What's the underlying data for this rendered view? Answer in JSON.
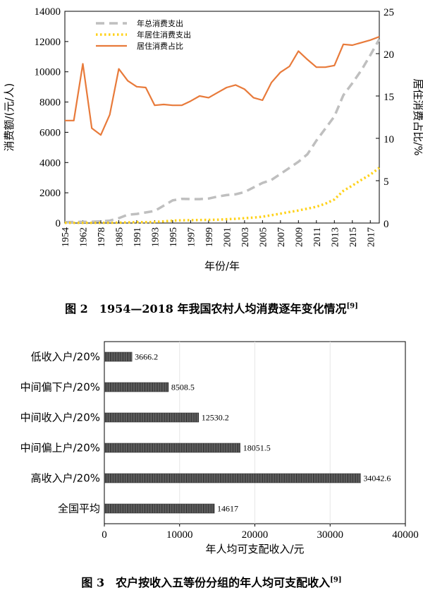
{
  "chart_data": [
    {
      "type": "line",
      "x": [
        "1954",
        "1957",
        "1962",
        "1965",
        "1978",
        "1980",
        "1985",
        "1990",
        "1991",
        "1992",
        "1993",
        "1994",
        "1995",
        "1996",
        "1997",
        "1998",
        "1999",
        "2000",
        "2001",
        "2002",
        "2003",
        "2004",
        "2005",
        "2006",
        "2007",
        "2008",
        "2009",
        "2010",
        "2011",
        "2012",
        "2013",
        "2014",
        "2015",
        "2016",
        "2017",
        "2018"
      ],
      "xticks": [
        "1954",
        "1962",
        "1978",
        "1985",
        "1991",
        "1993",
        "1995",
        "1997",
        "1999",
        "2001",
        "2003",
        "2005",
        "2007",
        "2009",
        "2011",
        "2013",
        "2015",
        "2017"
      ],
      "xlabel": "年份/年",
      "ylabel": "消费额/(元/人)",
      "ylabel_right": "居住消费占比/%",
      "ylim": [
        0,
        14000
      ],
      "yticks": [
        0,
        2000,
        4000,
        6000,
        8000,
        10000,
        12000,
        14000
      ],
      "ylim_right": [
        0,
        25
      ],
      "yticks_right": [
        0,
        5,
        10,
        15,
        20,
        25
      ],
      "legend_position": "top-left",
      "series": [
        {
          "name": "年总消费支出",
          "axis": "left",
          "color": "#bfbfbf",
          "style": "dashed",
          "values": [
            60,
            70,
            80,
            90,
            110,
            160,
            320,
            550,
            600,
            700,
            800,
            1150,
            1500,
            1600,
            1580,
            1580,
            1620,
            1750,
            1850,
            1900,
            2050,
            2350,
            2650,
            2850,
            3250,
            3650,
            4050,
            4550,
            5450,
            6250,
            7050,
            8450,
            9250,
            10100,
            11100,
            12150
          ]
        },
        {
          "name": "年居住消费支出",
          "axis": "left",
          "color": "#ffd21a",
          "style": "dotted",
          "values": [
            10,
            10,
            12,
            12,
            15,
            18,
            25,
            45,
            55,
            60,
            70,
            110,
            160,
            180,
            190,
            200,
            210,
            220,
            250,
            280,
            320,
            360,
            420,
            520,
            620,
            730,
            830,
            950,
            1080,
            1280,
            1560,
            2130,
            2480,
            2850,
            3200,
            3650
          ]
        },
        {
          "name": "居住消费占比",
          "axis": "right",
          "color": "#e87a3a",
          "style": "solid",
          "values": [
            12.1,
            12.1,
            18.8,
            11.2,
            10.4,
            12.8,
            18.2,
            16.8,
            16.1,
            16.0,
            13.9,
            14.0,
            13.9,
            13.9,
            14.4,
            15.0,
            14.8,
            15.4,
            16.0,
            16.3,
            15.8,
            14.8,
            14.5,
            16.6,
            17.8,
            18.5,
            20.3,
            19.3,
            18.4,
            18.4,
            18.6,
            21.1,
            21.0,
            21.3,
            21.6,
            22.0
          ]
        }
      ]
    },
    {
      "type": "bar",
      "orientation": "horizontal",
      "categories": [
        "低收入户/20%",
        "中间偏下户/20%",
        "中间收入户/20%",
        "中间偏上户/20%",
        "高收入户/20%",
        "全国平均"
      ],
      "values": [
        3666.2,
        8508.5,
        12530.2,
        18051.5,
        34042.6,
        14617
      ],
      "value_labels": [
        "3666.2",
        "8508.5",
        "12530.2",
        "18051.5",
        "34042.6",
        "14617"
      ],
      "xlabel": "年人均可支配收入/元",
      "xlim": [
        0,
        40000
      ],
      "xticks": [
        0,
        10000,
        20000,
        30000,
        40000
      ]
    }
  ],
  "captions": {
    "fig2": "图 2　1954—2018 年我国农村人均消费逐年变化情况",
    "fig2_ref": "[9]",
    "fig3": "图 3　农户按收入五等份分组的年人均可支配收入",
    "fig3_ref": "[9]"
  },
  "colors": {
    "bar_fill": "#7f7f7f",
    "bar_stripe": "#1a1a1a",
    "axis": "#000000"
  }
}
